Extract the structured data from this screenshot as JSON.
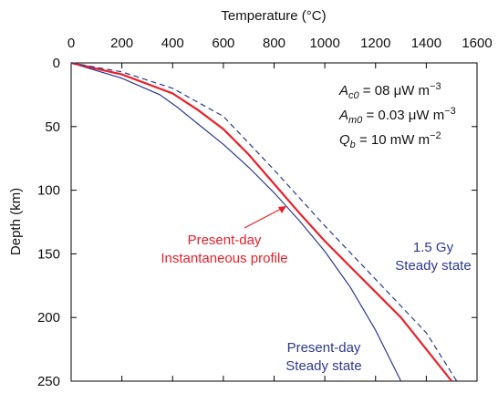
{
  "chart_data": {
    "type": "line",
    "x_label": "Temperature (°C)",
    "y_label": "Depth (km)",
    "xlim": [
      0,
      1600
    ],
    "xticks": [
      0,
      200,
      400,
      600,
      800,
      1000,
      1200,
      1400,
      1600
    ],
    "ylim": [
      0,
      250
    ],
    "yticks": [
      0,
      50,
      100,
      150,
      200,
      250
    ],
    "y_inverted": true,
    "series": [
      {
        "name": "Present-day Steady state",
        "color": "#2b3990",
        "style": "solid",
        "width": 1.2,
        "x": [
          0,
          200,
          350,
          420,
          500,
          600,
          700,
          800,
          900,
          1000,
          1100,
          1200,
          1300
        ],
        "values": [
          0,
          12,
          25,
          35,
          48,
          64,
          82,
          102,
          124,
          148,
          176,
          210,
          250
        ]
      },
      {
        "name": "Present-day Instantaneous profile",
        "color": "#e8202a",
        "style": "solid",
        "width": 2.2,
        "x": [
          0,
          200,
          400,
          500,
          600,
          700,
          800,
          900,
          1000,
          1100,
          1200,
          1300,
          1400,
          1500
        ],
        "values": [
          0,
          9,
          24,
          37,
          52,
          72,
          95,
          118,
          140,
          160,
          180,
          200,
          225,
          250
        ]
      },
      {
        "name": "1.5 Gy Steady state",
        "color": "#2b3990",
        "style": "dashed",
        "width": 1.2,
        "x": [
          0,
          200,
          400,
          600,
          800,
          1000,
          1200,
          1400,
          1520
        ],
        "values": [
          0,
          7,
          20,
          42,
          84,
          128,
          170,
          212,
          250
        ]
      }
    ],
    "curve_labels": [
      {
        "lines": [
          "Present-day",
          "Instantaneous profile"
        ],
        "color": "#e8202a"
      },
      {
        "lines": [
          "1.5 Gy",
          "Steady state"
        ],
        "color": "#2b3990"
      },
      {
        "lines": [
          "Present-day",
          "Steady state"
        ],
        "color": "#2b3990"
      }
    ],
    "annotations": [
      {
        "symbol": "A",
        "sub": "c0",
        "text": " = 08 μW m",
        "sup": "−3"
      },
      {
        "symbol": "A",
        "sub": "m0",
        "text": " = 0.03 μW m",
        "sup": "−3"
      },
      {
        "symbol": "Q",
        "sub": "b",
        "text": " = 10 mW m",
        "sup": "−2"
      }
    ]
  }
}
